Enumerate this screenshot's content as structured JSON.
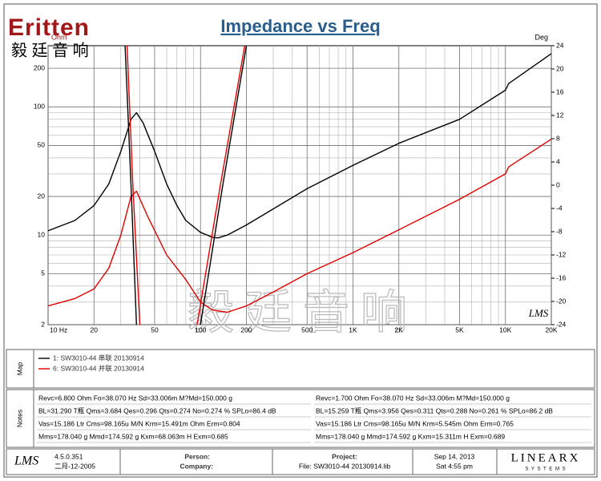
{
  "header": {
    "logo": "Eritten",
    "logo_cn": "毅 廷 音 响"
  },
  "chart_data": {
    "type": "line",
    "title": "Impedance vs Freq",
    "y_label": "Ohm",
    "y2_label": "Deg",
    "watermark": "毅廷音响",
    "badge": "LMS",
    "xlog": true,
    "ylog": true,
    "grid": true,
    "xlim": [
      10,
      20000
    ],
    "ylim": [
      2,
      300
    ],
    "y2lim": [
      -24,
      24
    ],
    "xticks": [
      {
        "value": 10,
        "label": "10  Hz"
      },
      20,
      50,
      100,
      200,
      500,
      {
        "value": 1000,
        "label": "1K"
      },
      {
        "value": 2000,
        "label": "2K"
      },
      {
        "value": 5000,
        "label": "5K"
      },
      {
        "value": 10000,
        "label": "10K"
      },
      {
        "value": 20000,
        "label": "20K"
      }
    ],
    "xminor": [
      30,
      40,
      60,
      70,
      80,
      90,
      300,
      400,
      600,
      700,
      800,
      900,
      3000,
      4000,
      6000,
      7000,
      8000,
      9000
    ],
    "yticks": [
      2,
      5,
      10,
      20,
      50,
      100,
      200
    ],
    "yminor": [
      3,
      4,
      6,
      7,
      8,
      9,
      30,
      40,
      60,
      70,
      80,
      90
    ],
    "y2ticks": [
      -24,
      -20,
      -16,
      -12,
      -8,
      -4,
      0,
      4,
      8,
      12,
      16,
      20,
      24
    ],
    "series": [
      {
        "name": "1:  SW3010-44  串联 20130914",
        "color": "#000000",
        "x": [
          10,
          15,
          20,
          25,
          30,
          35,
          38,
          42,
          50,
          60,
          70,
          80,
          100,
          120,
          130,
          150,
          200,
          300,
          500,
          1000,
          2000,
          5000,
          10000,
          10500,
          20000
        ],
        "values": [
          10.8,
          13,
          17,
          25,
          45,
          80,
          90,
          75,
          45,
          25,
          17,
          13,
          10.5,
          9.6,
          9.5,
          10,
          12,
          16,
          23,
          35,
          52,
          80,
          135,
          152,
          260
        ]
      },
      {
        "name": "6:  SW3010-44  并联 20130914",
        "color": "#e00000",
        "x": [
          10,
          15,
          20,
          25,
          30,
          35,
          38,
          45,
          60,
          80,
          100,
          120,
          150,
          200,
          300,
          500,
          1000,
          2000,
          5000,
          10000,
          10500,
          20000
        ],
        "values": [
          2.8,
          3.2,
          3.8,
          5.5,
          10,
          20,
          22,
          14,
          7,
          4.5,
          3,
          2.6,
          2.5,
          2.8,
          3.6,
          5,
          7.3,
          11,
          19,
          30,
          34,
          56
        ]
      },
      {
        "color": "#000000",
        "axis": "y2",
        "x": [
          32,
          35,
          38,
          60,
          100,
          140,
          200
        ],
        "values": [
          24,
          0,
          -24,
          null,
          -24,
          0,
          24
        ]
      },
      {
        "color": "#e00000",
        "axis": "y2",
        "x": [
          33,
          36,
          40,
          60,
          95,
          135,
          195
        ],
        "values": [
          24,
          0,
          -24,
          null,
          -24,
          0,
          24
        ]
      }
    ]
  },
  "map": {
    "label": "Map"
  },
  "notes": {
    "label": "Notes",
    "left": [
      "Revc=6.800 Ohm  Fo=38.070 Hz  Sd=33.006m M?Md=150.000 g",
      "BL=31.290 T瓶  Qms=3.684  Qes=0.296  Qts=0.274  No=0.274 %  SPLo=86.4 dB",
      "Vas=15.186 Ltr  Cms=98.165u M/N  Krm=15.491m Ohm  Erm=0.804",
      "Mms=178.040 g  Mmd=174.592 g  Kxm=68.063m H  Exm=0.685"
    ],
    "right": [
      "Revc=1.700 Ohm  Fo=38.070 Hz  Sd=33.006m M?Md=150.000 g",
      "BL=15.259 T瓶  Qms=3.956  Qes=0.311  Qts=0.288  No=0.261 %  SPLo=86.2 dB",
      "Vas=15.186 Ltr  Cms=98.165u M/N  Krm=5.545m Ohm  Erm=0.765",
      "Mms=178.040 g  Mmd=174.592 g  Kxm=15.311m H  Exm=0.689"
    ]
  },
  "footer": {
    "software": "LMS",
    "version": "4.5.0.351",
    "build_date": "二月-12-2005",
    "person": "Person:",
    "company": "Company:",
    "project": "Project:",
    "file": "File:  SW3010-44  20130914.lib",
    "date": "Sep 14, 2013",
    "time": "Sat  4:55 pm",
    "brand": "LINEARX",
    "brand_sub": "S Y S T E M S"
  }
}
